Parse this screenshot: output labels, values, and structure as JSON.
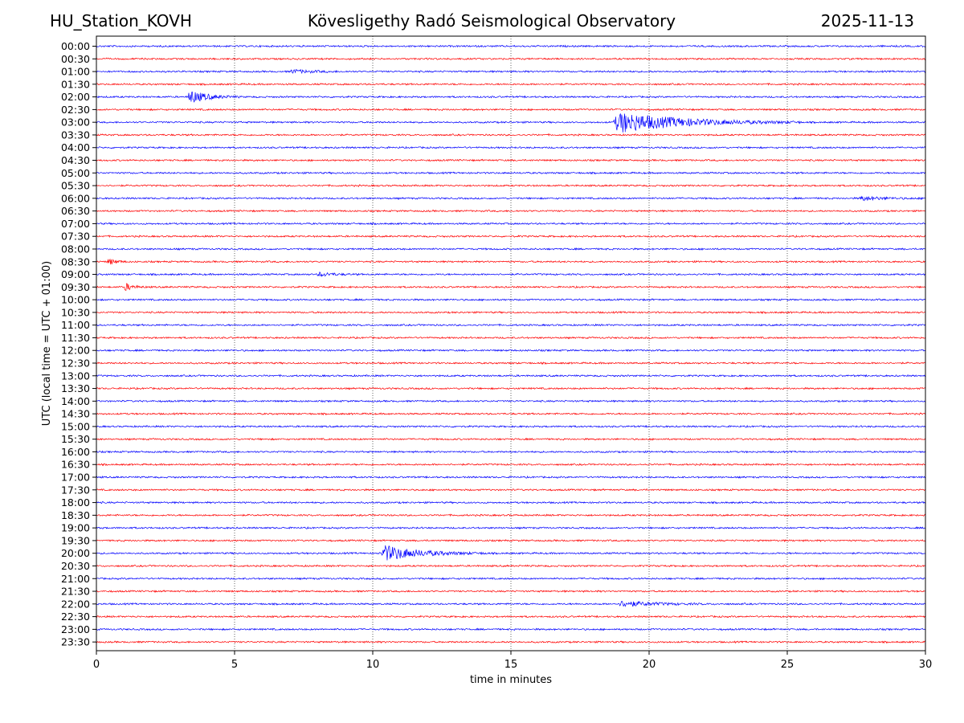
{
  "header": {
    "station": "HU_Station_KOVH",
    "title": "Kövesligethy Radó Seismological Observatory",
    "date": "2025-11-13"
  },
  "chart_data": {
    "type": "line",
    "title": "Kövesligethy Radó Seismological Observatory",
    "xlabel": "time in minutes",
    "ylabel": "UTC (local time = UTC + 01:00)",
    "xlim": [
      0,
      30
    ],
    "xticks": [
      0,
      5,
      10,
      15,
      20,
      25,
      30
    ],
    "grid": "vertical dotted lines at x ticks",
    "colors": {
      "even": "#0000ff",
      "odd": "#ff0000"
    },
    "rows": [
      "00:00",
      "00:30",
      "01:00",
      "01:30",
      "02:00",
      "02:30",
      "03:00",
      "03:30",
      "04:00",
      "04:30",
      "05:00",
      "05:30",
      "06:00",
      "06:30",
      "07:00",
      "07:30",
      "08:00",
      "08:30",
      "09:00",
      "09:30",
      "10:00",
      "10:30",
      "11:00",
      "11:30",
      "12:00",
      "12:30",
      "13:00",
      "13:30",
      "14:00",
      "14:30",
      "15:00",
      "15:30",
      "16:00",
      "16:30",
      "17:00",
      "17:30",
      "18:00",
      "18:30",
      "19:00",
      "19:30",
      "20:00",
      "20:30",
      "21:00",
      "21:30",
      "22:00",
      "22:30",
      "23:00",
      "23:30"
    ],
    "events": [
      {
        "row": "01:00",
        "start": 7.0,
        "end": 9.3,
        "amplitude": 0.25
      },
      {
        "row": "02:00",
        "start": 3.3,
        "end": 5.2,
        "amplitude": 1.0
      },
      {
        "row": "03:00",
        "start": 18.7,
        "end": 25.5,
        "amplitude": 1.5
      },
      {
        "row": "06:00",
        "start": 27.6,
        "end": 30.0,
        "amplitude": 0.3
      },
      {
        "row": "08:30",
        "start": 0.4,
        "end": 1.2,
        "amplitude": 0.45
      },
      {
        "row": "09:00",
        "start": 8.0,
        "end": 9.5,
        "amplitude": 0.3
      },
      {
        "row": "09:30",
        "start": 1.0,
        "end": 1.9,
        "amplitude": 0.55
      },
      {
        "row": "20:00",
        "start": 10.3,
        "end": 14.2,
        "amplitude": 1.1
      },
      {
        "row": "22:00",
        "start": 18.9,
        "end": 22.5,
        "amplitude": 0.4
      }
    ]
  }
}
